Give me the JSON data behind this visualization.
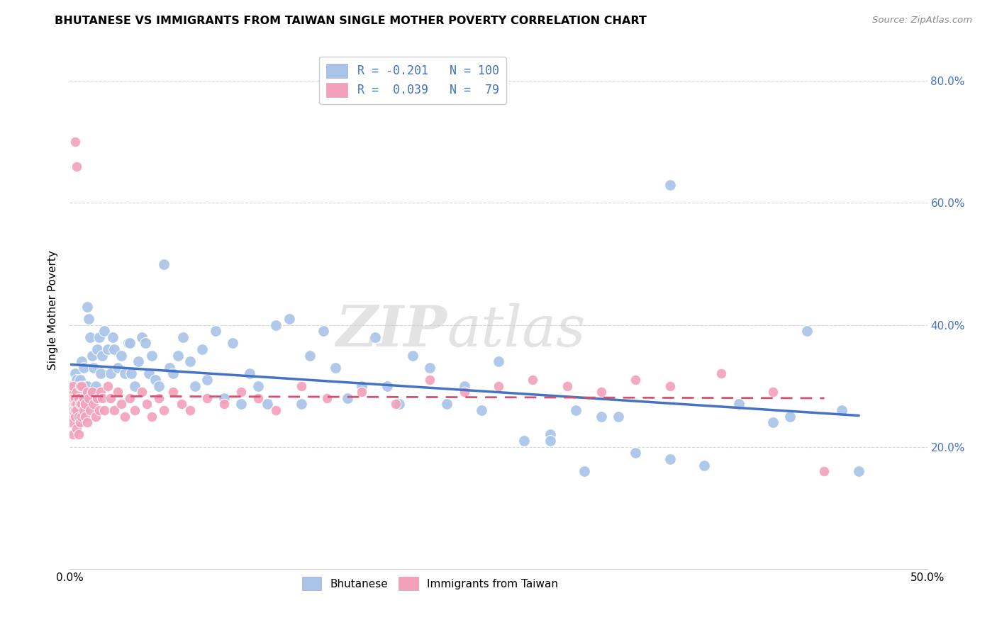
{
  "title": "BHUTANESE VS IMMIGRANTS FROM TAIWAN SINGLE MOTHER POVERTY CORRELATION CHART",
  "source": "Source: ZipAtlas.com",
  "ylabel": "Single Mother Poverty",
  "xlim": [
    0.0,
    0.5
  ],
  "ylim": [
    0.0,
    0.85
  ],
  "bhutanese_R": -0.201,
  "bhutanese_N": 100,
  "taiwan_R": 0.039,
  "taiwan_N": 79,
  "blue_color": "#a8c4e8",
  "pink_color": "#f4a0ba",
  "blue_line_color": "#4472c4",
  "pink_line_color": "#d45070",
  "legend_text_color": "#4472c4",
  "bhutanese_x": [
    0.001,
    0.001,
    0.002,
    0.002,
    0.003,
    0.003,
    0.003,
    0.004,
    0.004,
    0.004,
    0.005,
    0.005,
    0.005,
    0.006,
    0.006,
    0.007,
    0.007,
    0.008,
    0.008,
    0.009,
    0.01,
    0.01,
    0.011,
    0.012,
    0.013,
    0.014,
    0.015,
    0.016,
    0.017,
    0.018,
    0.019,
    0.02,
    0.022,
    0.024,
    0.025,
    0.026,
    0.028,
    0.03,
    0.032,
    0.034,
    0.035,
    0.036,
    0.038,
    0.04,
    0.042,
    0.044,
    0.046,
    0.048,
    0.05,
    0.052,
    0.055,
    0.058,
    0.06,
    0.063,
    0.066,
    0.07,
    0.073,
    0.077,
    0.08,
    0.085,
    0.09,
    0.095,
    0.1,
    0.105,
    0.11,
    0.115,
    0.12,
    0.128,
    0.135,
    0.14,
    0.148,
    0.155,
    0.162,
    0.17,
    0.178,
    0.185,
    0.192,
    0.2,
    0.21,
    0.22,
    0.23,
    0.24,
    0.25,
    0.265,
    0.28,
    0.295,
    0.31,
    0.33,
    0.35,
    0.37,
    0.39,
    0.41,
    0.43,
    0.45,
    0.35,
    0.28,
    0.3,
    0.32,
    0.42,
    0.46
  ],
  "bhutanese_y": [
    0.3,
    0.27,
    0.29,
    0.26,
    0.29,
    0.28,
    0.32,
    0.31,
    0.28,
    0.26,
    0.27,
    0.3,
    0.24,
    0.29,
    0.31,
    0.27,
    0.34,
    0.28,
    0.33,
    0.3,
    0.43,
    0.3,
    0.41,
    0.38,
    0.35,
    0.33,
    0.3,
    0.36,
    0.38,
    0.32,
    0.35,
    0.39,
    0.36,
    0.32,
    0.38,
    0.36,
    0.33,
    0.35,
    0.32,
    0.37,
    0.37,
    0.32,
    0.3,
    0.34,
    0.38,
    0.37,
    0.32,
    0.35,
    0.31,
    0.3,
    0.5,
    0.33,
    0.32,
    0.35,
    0.38,
    0.34,
    0.3,
    0.36,
    0.31,
    0.39,
    0.28,
    0.37,
    0.27,
    0.32,
    0.3,
    0.27,
    0.4,
    0.41,
    0.27,
    0.35,
    0.39,
    0.33,
    0.28,
    0.3,
    0.38,
    0.3,
    0.27,
    0.35,
    0.33,
    0.27,
    0.3,
    0.26,
    0.34,
    0.21,
    0.22,
    0.26,
    0.25,
    0.19,
    0.18,
    0.17,
    0.27,
    0.24,
    0.39,
    0.26,
    0.63,
    0.21,
    0.16,
    0.25,
    0.25,
    0.16
  ],
  "taiwan_x": [
    0.001,
    0.001,
    0.001,
    0.001,
    0.002,
    0.002,
    0.002,
    0.002,
    0.003,
    0.003,
    0.003,
    0.003,
    0.004,
    0.004,
    0.004,
    0.004,
    0.005,
    0.005,
    0.005,
    0.006,
    0.006,
    0.006,
    0.007,
    0.007,
    0.007,
    0.008,
    0.008,
    0.009,
    0.009,
    0.01,
    0.01,
    0.011,
    0.012,
    0.013,
    0.014,
    0.015,
    0.016,
    0.017,
    0.018,
    0.019,
    0.02,
    0.022,
    0.024,
    0.026,
    0.028,
    0.03,
    0.032,
    0.035,
    0.038,
    0.042,
    0.045,
    0.048,
    0.052,
    0.055,
    0.06,
    0.065,
    0.07,
    0.08,
    0.09,
    0.1,
    0.11,
    0.12,
    0.135,
    0.15,
    0.17,
    0.19,
    0.21,
    0.23,
    0.25,
    0.27,
    0.29,
    0.31,
    0.33,
    0.35,
    0.38,
    0.41,
    0.44,
    0.003,
    0.004
  ],
  "taiwan_y": [
    0.27,
    0.25,
    0.29,
    0.24,
    0.28,
    0.26,
    0.3,
    0.22,
    0.27,
    0.26,
    0.28,
    0.25,
    0.27,
    0.29,
    0.23,
    0.26,
    0.28,
    0.25,
    0.22,
    0.27,
    0.3,
    0.24,
    0.27,
    0.25,
    0.3,
    0.26,
    0.28,
    0.25,
    0.27,
    0.29,
    0.24,
    0.28,
    0.26,
    0.29,
    0.27,
    0.25,
    0.28,
    0.26,
    0.29,
    0.28,
    0.26,
    0.3,
    0.28,
    0.26,
    0.29,
    0.27,
    0.25,
    0.28,
    0.26,
    0.29,
    0.27,
    0.25,
    0.28,
    0.26,
    0.29,
    0.27,
    0.26,
    0.28,
    0.27,
    0.29,
    0.28,
    0.26,
    0.3,
    0.28,
    0.29,
    0.27,
    0.31,
    0.29,
    0.3,
    0.31,
    0.3,
    0.29,
    0.31,
    0.3,
    0.32,
    0.29,
    0.16,
    0.7,
    0.66
  ]
}
